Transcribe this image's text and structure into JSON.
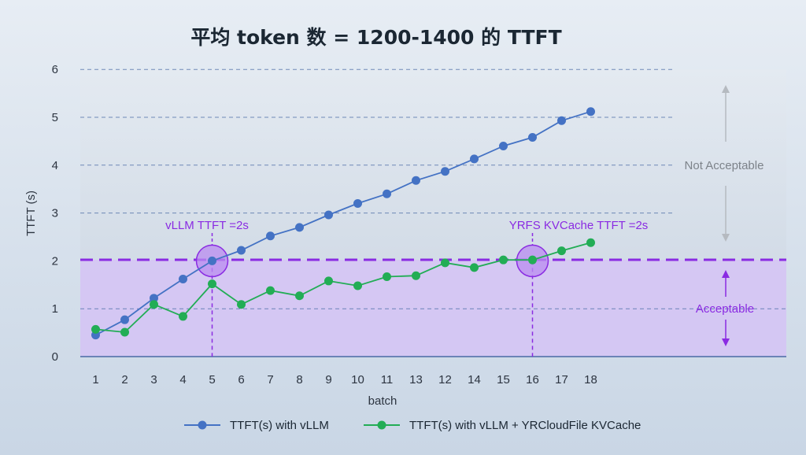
{
  "chart_data": {
    "type": "line",
    "title": "平均 token 数 = 1200-1400 的 TTFT",
    "xlabel": "batch",
    "ylabel": "TTFT (s)",
    "categories": [
      "1",
      "2",
      "3",
      "4",
      "5",
      "6",
      "7",
      "8",
      "9",
      "10",
      "11",
      "13",
      "12",
      "14",
      "15",
      "16",
      "17",
      "18"
    ],
    "ylim": [
      0,
      6
    ],
    "yticks": [
      "0",
      "1",
      "2",
      "3",
      "4",
      "5",
      "6"
    ],
    "grid": true,
    "legend_position": "bottom",
    "series": [
      {
        "name": "TTFT(s) with vLLM",
        "color": "#4472c4",
        "values": [
          0.45,
          0.77,
          1.22,
          1.62,
          2.0,
          2.22,
          2.52,
          2.7,
          2.96,
          3.2,
          3.4,
          3.68,
          3.87,
          4.13,
          4.4,
          4.58,
          4.93,
          5.12
        ]
      },
      {
        "name": "TTFT(s) with vLLM + YRCloudFile KVCache",
        "color": "#22ad55",
        "values": [
          0.57,
          0.51,
          1.09,
          0.84,
          1.52,
          1.09,
          1.38,
          1.27,
          1.58,
          1.48,
          1.67,
          1.69,
          1.96,
          1.86,
          2.02,
          2.02,
          2.21,
          2.38
        ]
      }
    ],
    "threshold": {
      "value": 2,
      "color": "#8a2be2"
    },
    "annotations": {
      "vllm_marker": {
        "label": "vLLM  TTFT =2s",
        "category_index": 4
      },
      "yrfs_marker": {
        "label": "YRFS KVCache  TTFT =2s",
        "category_index": 15
      },
      "not_acceptable": "Not Acceptable",
      "acceptable": "Acceptable"
    },
    "colors": {
      "background_top": "#e7edf4",
      "background_bottom": "#c9d6e5",
      "acceptable_band": "#d5c3f4",
      "gridline": "#4a6aa5"
    }
  }
}
